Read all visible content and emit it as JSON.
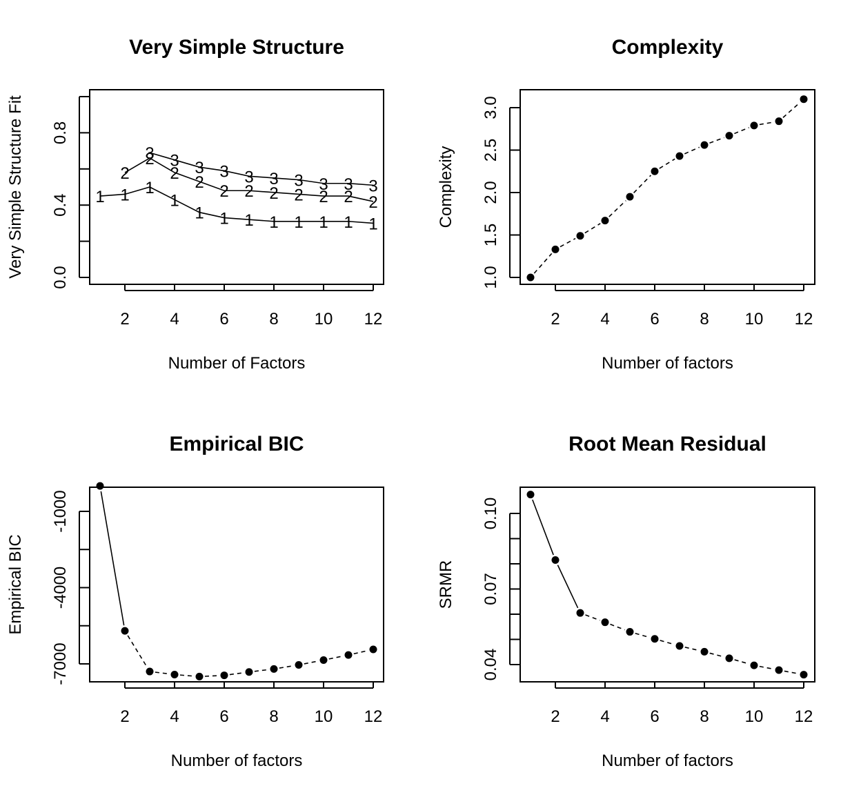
{
  "chart_data": [
    {
      "type": "line",
      "title": "Very Simple Structure",
      "xlabel": "Number of Factors",
      "ylabel": "Very Simple Structure Fit",
      "xlim": [
        1,
        12
      ],
      "ylim": [
        0,
        1
      ],
      "xticks": [
        2,
        4,
        6,
        8,
        10,
        12
      ],
      "yticks": [
        0.0,
        0.2,
        0.4,
        0.6,
        0.8,
        1.0
      ],
      "ytick_labels": [
        "0.0",
        "",
        "0.4",
        "",
        "0.8",
        ""
      ],
      "marker": "label",
      "series": [
        {
          "name": "1",
          "x": [
            1,
            2,
            3,
            4,
            5,
            6,
            7,
            8,
            9,
            10,
            11,
            12
          ],
          "values": [
            0.45,
            0.46,
            0.5,
            0.43,
            0.36,
            0.33,
            0.32,
            0.31,
            0.31,
            0.31,
            0.31,
            0.3
          ]
        },
        {
          "name": "2",
          "x": [
            2,
            3,
            4,
            5,
            6,
            7,
            8,
            9,
            10,
            11,
            12
          ],
          "values": [
            0.58,
            0.66,
            0.58,
            0.53,
            0.48,
            0.48,
            0.47,
            0.46,
            0.45,
            0.45,
            0.42
          ]
        },
        {
          "name": "3",
          "x": [
            3,
            4,
            5,
            6,
            7,
            8,
            9,
            10,
            11,
            12
          ],
          "values": [
            0.69,
            0.65,
            0.61,
            0.59,
            0.56,
            0.55,
            0.54,
            0.52,
            0.52,
            0.51
          ]
        }
      ]
    },
    {
      "type": "line",
      "title": "Complexity",
      "xlabel": "Number of factors",
      "ylabel": "Complexity",
      "xlim": [
        1,
        12
      ],
      "ylim": [
        1.0,
        3.1
      ],
      "xticks": [
        2,
        4,
        6,
        8,
        10,
        12
      ],
      "yticks": [
        1.0,
        1.5,
        2.0,
        2.5,
        3.0
      ],
      "ytick_labels": [
        "1.0",
        "1.5",
        "2.0",
        "2.5",
        "3.0"
      ],
      "marker": "dot",
      "series": [
        {
          "x": [
            1,
            2,
            3,
            4,
            5,
            6,
            7,
            8,
            9,
            10,
            11,
            12
          ],
          "values": [
            1.0,
            1.33,
            1.49,
            1.67,
            1.95,
            2.25,
            2.43,
            2.56,
            2.67,
            2.79,
            2.84,
            3.1
          ]
        }
      ]
    },
    {
      "type": "line",
      "title": "Empirical BIC",
      "xlabel": "Number of factors",
      "ylabel": "Empirical BIC",
      "xlim": [
        1,
        12
      ],
      "ylim": [
        -7400,
        1000
      ],
      "xticks": [
        2,
        4,
        6,
        8,
        10,
        12
      ],
      "yticks": [
        -1000,
        -2500,
        -4000,
        -5500,
        -7000
      ],
      "ytick_labels": [
        "-1000",
        "",
        "-4000",
        "",
        "-7000"
      ],
      "marker": "dot",
      "series": [
        {
          "x": [
            1,
            2,
            3,
            4,
            5,
            6,
            7,
            8,
            9,
            10,
            11,
            12
          ],
          "values": [
            0,
            -5700,
            -7300,
            -7420,
            -7500,
            -7450,
            -7320,
            -7200,
            -7040,
            -6850,
            -6650,
            -6430
          ]
        }
      ]
    },
    {
      "type": "line",
      "title": "Root Mean Residual",
      "xlabel": "Number of factors",
      "ylabel": "SRMR",
      "xlim": [
        1,
        12
      ],
      "ylim": [
        0.033,
        0.111
      ],
      "xticks": [
        2,
        4,
        6,
        8,
        10,
        12
      ],
      "yticks": [
        0.04,
        0.05,
        0.06,
        0.07,
        0.08,
        0.09,
        0.1
      ],
      "ytick_labels": [
        "0.04",
        "",
        "",
        "0.07",
        "",
        "",
        "0.10"
      ],
      "marker": "dot",
      "series": [
        {
          "x": [
            1,
            2,
            3,
            4,
            5,
            6,
            7,
            8,
            9,
            10,
            11,
            12
          ],
          "values": [
            0.1075,
            0.0815,
            0.0605,
            0.0568,
            0.053,
            0.0502,
            0.0474,
            0.0451,
            0.0425,
            0.0397,
            0.0378,
            0.036
          ]
        }
      ]
    }
  ]
}
